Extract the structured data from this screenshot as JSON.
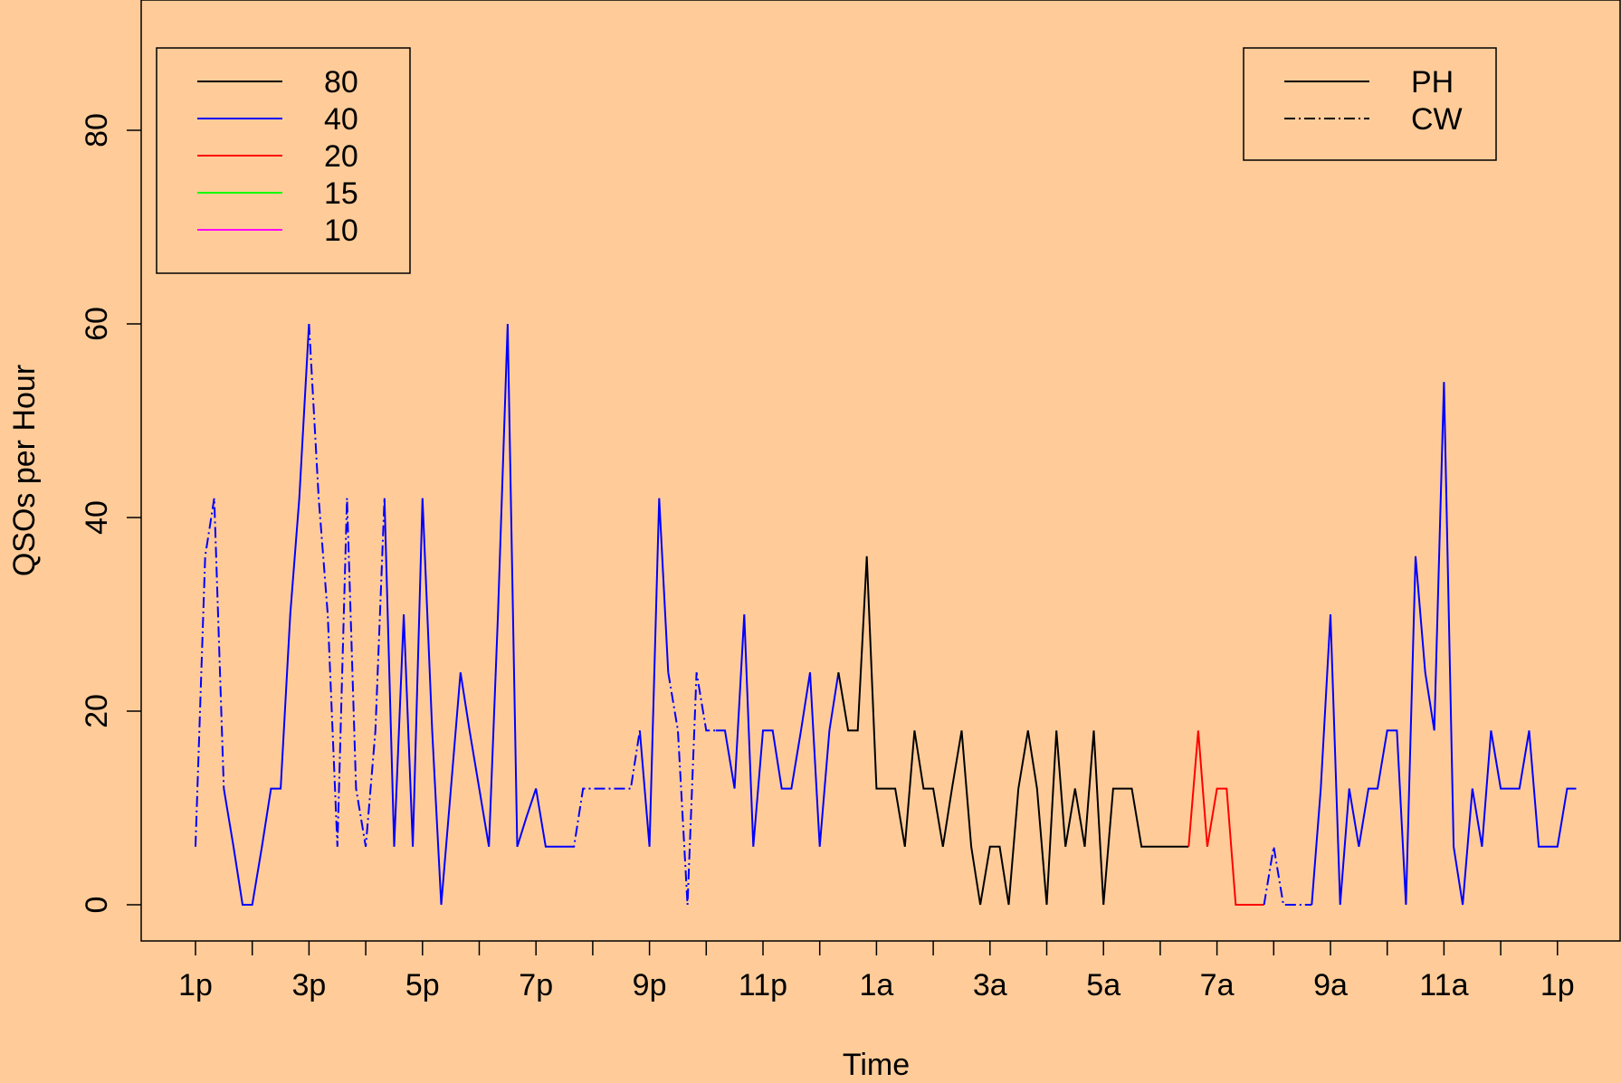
{
  "colors": {
    "background": "#FFCC99",
    "80": "#000000",
    "40": "#0000FF",
    "20": "#FF0000",
    "15": "#00FF00",
    "10": "#FF00FF"
  },
  "chart_data": {
    "type": "line",
    "title": "",
    "xlabel": "Time",
    "ylabel": "QSOs per Hour",
    "ylim": [
      0,
      90
    ],
    "xlim": [
      0,
      24
    ],
    "y_ticks": [
      0,
      20,
      40,
      60,
      80
    ],
    "x_tick_labels": [
      "1p",
      "3p",
      "5p",
      "7p",
      "9p",
      "11p",
      "1a",
      "3a",
      "5a",
      "7a",
      "9a",
      "11a",
      "1p"
    ],
    "x_tick_positions": [
      0,
      2,
      4,
      6,
      8,
      10,
      12,
      14,
      16,
      18,
      20,
      22,
      24
    ],
    "x_minor_tick_positions": [
      1,
      3,
      5,
      7,
      9,
      11,
      13,
      15,
      17,
      19,
      21,
      23
    ],
    "band_legend": {
      "placement": "top-left",
      "entries": [
        {
          "label": "80",
          "color": "#000000"
        },
        {
          "label": "40",
          "color": "#0000FF"
        },
        {
          "label": "20",
          "color": "#FF0000"
        },
        {
          "label": "15",
          "color": "#00FF00"
        },
        {
          "label": "10",
          "color": "#FF00FF"
        }
      ]
    },
    "mode_legend": {
      "placement": "top-right",
      "entries": [
        {
          "label": "PH",
          "style": "solid"
        },
        {
          "label": "CW",
          "style": "dashdot"
        }
      ]
    },
    "series": [
      {
        "band": "40",
        "mode": "CW",
        "points": [
          [
            0,
            6
          ],
          [
            0.17,
            36
          ],
          [
            0.33,
            42
          ],
          [
            0.5,
            12
          ]
        ]
      },
      {
        "band": "40",
        "mode": "PH",
        "points": [
          [
            0.5,
            12
          ],
          [
            0.67,
            6
          ],
          [
            0.83,
            0
          ],
          [
            1,
            0
          ],
          [
            1.17,
            6
          ],
          [
            1.33,
            12
          ],
          [
            1.5,
            12
          ],
          [
            1.67,
            30
          ],
          [
            1.83,
            42
          ],
          [
            2,
            60
          ]
        ]
      },
      {
        "band": "40",
        "mode": "CW",
        "points": [
          [
            2,
            60
          ],
          [
            2.17,
            42
          ],
          [
            2.33,
            30
          ],
          [
            2.5,
            6
          ],
          [
            2.67,
            42
          ],
          [
            2.83,
            12
          ],
          [
            3,
            6
          ],
          [
            3.17,
            18
          ],
          [
            3.33,
            42
          ]
        ]
      },
      {
        "band": "40",
        "mode": "PH",
        "points": [
          [
            3.33,
            42
          ],
          [
            3.5,
            6
          ],
          [
            3.67,
            30
          ],
          [
            3.83,
            6
          ],
          [
            4,
            42
          ],
          [
            4.17,
            18
          ],
          [
            4.33,
            0
          ],
          [
            4.5,
            12
          ],
          [
            4.67,
            24
          ],
          [
            4.83,
            18
          ],
          [
            5,
            12
          ],
          [
            5.17,
            6
          ],
          [
            5.33,
            30
          ],
          [
            5.5,
            60
          ],
          [
            5.67,
            6
          ],
          [
            5.83,
            9
          ],
          [
            6,
            12
          ],
          [
            6.17,
            6
          ],
          [
            6.33,
            6
          ],
          [
            6.5,
            6
          ]
        ]
      },
      {
        "band": "40",
        "mode": "CW",
        "points": [
          [
            6.5,
            6
          ],
          [
            6.67,
            6
          ],
          [
            6.83,
            12
          ],
          [
            7,
            12
          ],
          [
            7.17,
            12
          ],
          [
            7.33,
            12
          ],
          [
            7.5,
            12
          ],
          [
            7.67,
            12
          ],
          [
            7.83,
            18
          ]
        ]
      },
      {
        "band": "40",
        "mode": "PH",
        "points": [
          [
            7.83,
            18
          ],
          [
            8,
            6
          ],
          [
            8.17,
            42
          ],
          [
            8.33,
            24
          ]
        ]
      },
      {
        "band": "40",
        "mode": "CW",
        "points": [
          [
            8.33,
            24
          ],
          [
            8.5,
            18
          ],
          [
            8.67,
            0
          ],
          [
            8.83,
            24
          ],
          [
            9,
            18
          ],
          [
            9.17,
            18
          ]
        ]
      },
      {
        "band": "40",
        "mode": "PH",
        "points": [
          [
            9.17,
            18
          ],
          [
            9.33,
            18
          ],
          [
            9.5,
            12
          ],
          [
            9.67,
            30
          ],
          [
            9.83,
            6
          ],
          [
            10,
            18
          ],
          [
            10.17,
            18
          ],
          [
            10.33,
            12
          ],
          [
            10.5,
            12
          ],
          [
            10.67,
            18
          ],
          [
            10.83,
            24
          ],
          [
            11,
            6
          ],
          [
            11.17,
            18
          ],
          [
            11.33,
            24
          ]
        ]
      },
      {
        "band": "80",
        "mode": "PH",
        "points": [
          [
            11.33,
            24
          ],
          [
            11.5,
            18
          ],
          [
            11.67,
            18
          ],
          [
            11.83,
            36
          ],
          [
            12,
            12
          ],
          [
            12.17,
            12
          ],
          [
            12.33,
            12
          ],
          [
            12.5,
            6
          ],
          [
            12.67,
            18
          ],
          [
            12.83,
            12
          ],
          [
            13,
            12
          ],
          [
            13.17,
            6
          ],
          [
            13.33,
            12
          ],
          [
            13.5,
            18
          ],
          [
            13.67,
            6
          ],
          [
            13.83,
            0
          ],
          [
            14,
            6
          ],
          [
            14.17,
            6
          ],
          [
            14.33,
            0
          ],
          [
            14.5,
            12
          ],
          [
            14.67,
            18
          ],
          [
            14.83,
            12
          ],
          [
            15,
            0
          ],
          [
            15.17,
            18
          ],
          [
            15.33,
            6
          ],
          [
            15.5,
            12
          ],
          [
            15.67,
            6
          ],
          [
            15.83,
            18
          ],
          [
            16,
            0
          ],
          [
            16.17,
            12
          ],
          [
            16.33,
            12
          ],
          [
            16.5,
            12
          ],
          [
            16.67,
            6
          ],
          [
            16.83,
            6
          ],
          [
            17,
            6
          ],
          [
            17.17,
            6
          ],
          [
            17.33,
            6
          ],
          [
            17.5,
            6
          ]
        ]
      },
      {
        "band": "20",
        "mode": "PH",
        "points": [
          [
            17.5,
            6
          ],
          [
            17.67,
            18
          ],
          [
            17.83,
            6
          ],
          [
            18,
            12
          ],
          [
            18.17,
            12
          ],
          [
            18.33,
            0
          ],
          [
            18.5,
            0
          ],
          [
            18.67,
            0
          ],
          [
            18.83,
            0
          ]
        ]
      },
      {
        "band": "40",
        "mode": "CW",
        "points": [
          [
            18.83,
            0
          ],
          [
            19,
            6
          ],
          [
            19.17,
            0
          ],
          [
            19.33,
            0
          ],
          [
            19.5,
            0
          ],
          [
            19.67,
            0
          ]
        ]
      },
      {
        "band": "40",
        "mode": "PH",
        "points": [
          [
            19.67,
            0
          ],
          [
            19.83,
            12
          ],
          [
            20,
            30
          ],
          [
            20.17,
            0
          ],
          [
            20.33,
            12
          ],
          [
            20.5,
            6
          ],
          [
            20.67,
            12
          ],
          [
            20.83,
            12
          ],
          [
            21,
            18
          ],
          [
            21.17,
            18
          ],
          [
            21.33,
            0
          ],
          [
            21.5,
            36
          ],
          [
            21.67,
            24
          ],
          [
            21.83,
            18
          ],
          [
            22,
            54
          ],
          [
            22.17,
            6
          ],
          [
            22.33,
            0
          ],
          [
            22.5,
            12
          ],
          [
            22.67,
            6
          ],
          [
            22.83,
            18
          ],
          [
            23,
            12
          ],
          [
            23.17,
            12
          ],
          [
            23.33,
            12
          ],
          [
            23.5,
            18
          ],
          [
            23.67,
            6
          ],
          [
            23.83,
            6
          ],
          [
            24,
            6
          ],
          [
            24.17,
            12
          ],
          [
            24.33,
            12
          ]
        ]
      }
    ]
  }
}
